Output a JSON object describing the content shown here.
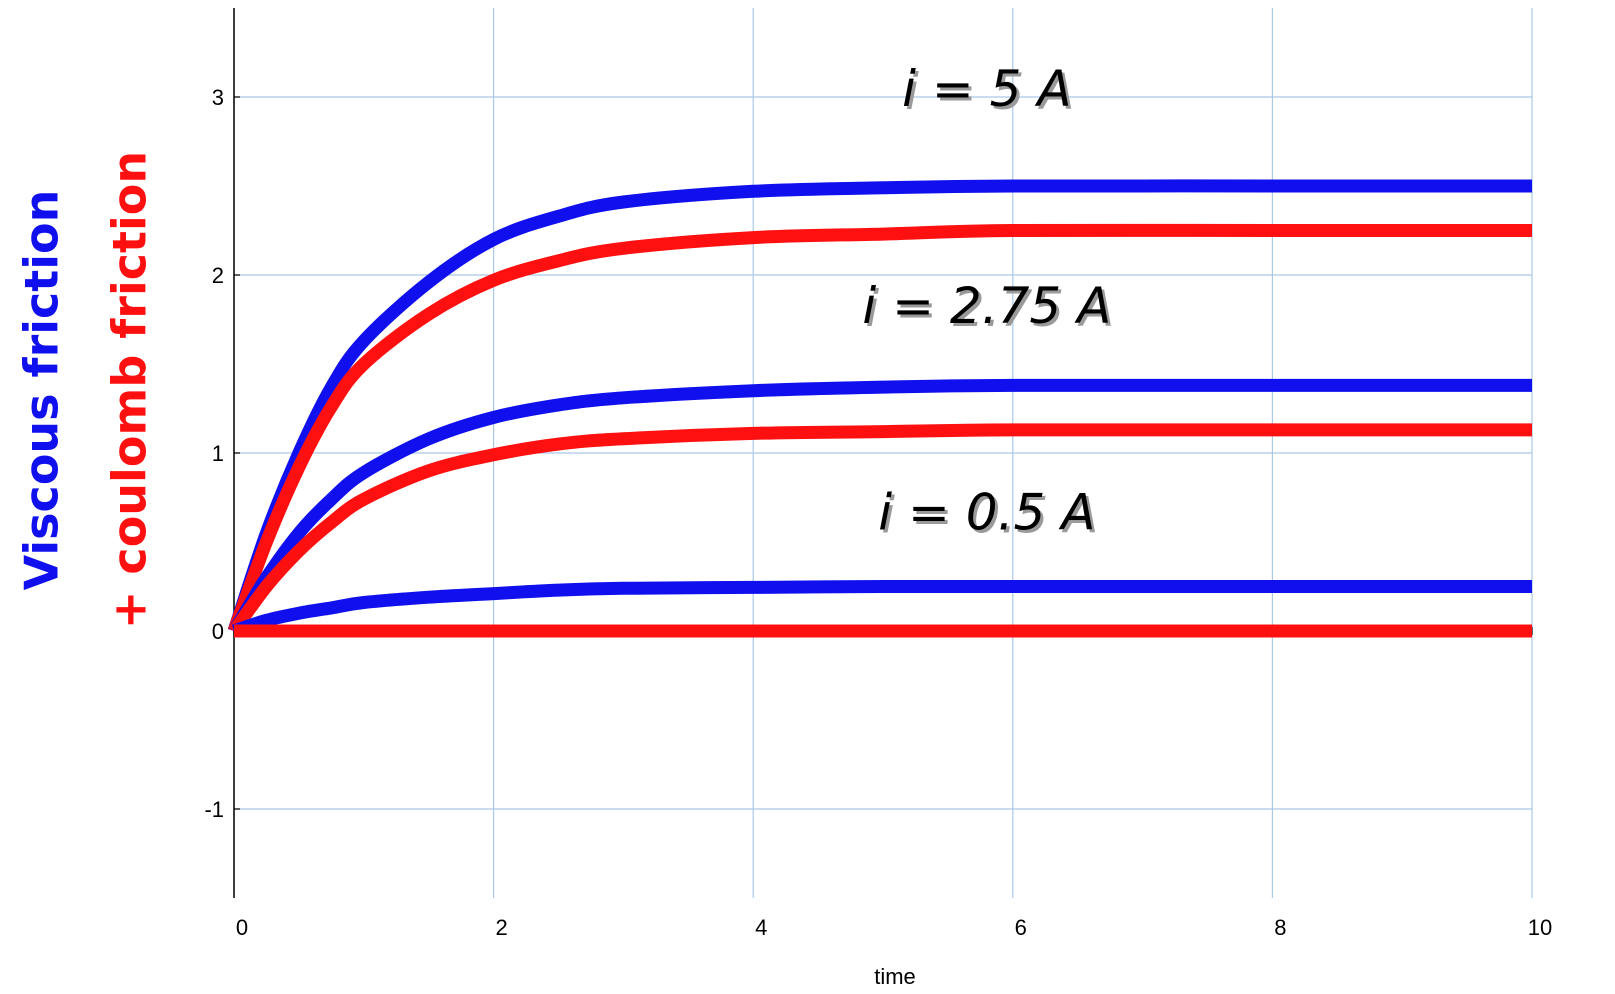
{
  "chart_data": {
    "type": "line",
    "xlabel": "time",
    "ylabel_lines": [
      {
        "text": "Viscous friction",
        "color": "#1010ee"
      },
      {
        "text": "+ coulomb friction",
        "color": "#ff1010"
      }
    ],
    "xlim": [
      0,
      10
    ],
    "ylim": [
      -1.5,
      3.5
    ],
    "x_ticks": [
      0,
      2,
      4,
      6,
      8,
      10
    ],
    "x_tick_labels": [
      "0",
      "2",
      "4",
      "6",
      "8",
      "10"
    ],
    "y_ticks": [
      -1,
      0,
      1,
      2,
      3
    ],
    "y_tick_labels": [
      "-1",
      "0",
      "1",
      "2",
      "3"
    ],
    "grid": true,
    "grid_color": "#aac8e8",
    "x": [
      0,
      0.25,
      0.5,
      0.75,
      1,
      1.5,
      2,
      2.5,
      3,
      4,
      5,
      6,
      8,
      10
    ],
    "series": [
      {
        "color": "#1010ee",
        "values": [
          0,
          0.55,
          1.0,
          1.37,
          1.63,
          1.96,
          2.2,
          2.33,
          2.41,
          2.47,
          2.49,
          2.5,
          2.5,
          2.5
        ]
      },
      {
        "color": "#ff1010",
        "values": [
          0,
          0.5,
          0.92,
          1.26,
          1.5,
          1.78,
          1.97,
          2.08,
          2.15,
          2.21,
          2.23,
          2.25,
          2.25,
          2.25
        ]
      },
      {
        "color": "#1010ee",
        "values": [
          0,
          0.3,
          0.55,
          0.74,
          0.89,
          1.08,
          1.2,
          1.27,
          1.31,
          1.35,
          1.37,
          1.38,
          1.38,
          1.38
        ]
      },
      {
        "color": "#ff1010",
        "values": [
          0,
          0.25,
          0.45,
          0.61,
          0.74,
          0.9,
          0.99,
          1.05,
          1.08,
          1.11,
          1.12,
          1.13,
          1.13,
          1.13
        ]
      },
      {
        "color": "#1010ee",
        "values": [
          0,
          0.06,
          0.1,
          0.13,
          0.16,
          0.19,
          0.21,
          0.23,
          0.24,
          0.245,
          0.25,
          0.25,
          0.25,
          0.25
        ]
      },
      {
        "color": "#ff1010",
        "values": [
          0,
          0,
          0,
          0,
          0,
          0,
          0,
          0,
          0,
          0,
          0,
          0,
          0,
          0
        ]
      }
    ],
    "annotations": [
      {
        "text": "i = 5 A",
        "x": 5.8,
        "y": 2.95
      },
      {
        "text": "i = 2.75 A",
        "x": 5.8,
        "y": 1.73
      },
      {
        "text": "i = 0.5 A",
        "x": 5.8,
        "y": 0.57
      }
    ]
  }
}
